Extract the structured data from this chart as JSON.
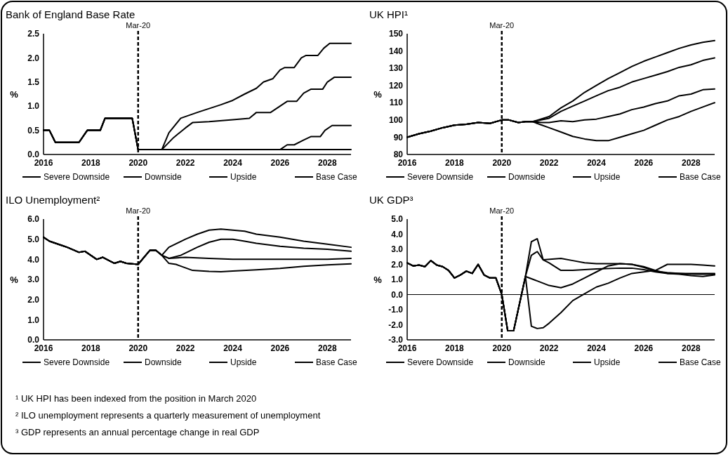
{
  "chart_data": [
    {
      "type": "line",
      "title": "Bank of England Base Rate",
      "ylabel": "%",
      "xlim": [
        2016,
        2029
      ],
      "xticks": [
        2016,
        2018,
        2020,
        2022,
        2024,
        2026,
        2028
      ],
      "ylim": [
        0,
        2.5
      ],
      "yticks": [
        {
          "value": 0,
          "label": "0.0"
        },
        {
          "value": 0.5,
          "label": "0.5"
        },
        {
          "value": 1,
          "label": "1.0"
        },
        {
          "value": 1.5,
          "label": "1.5"
        },
        {
          "value": 2,
          "label": "2.0"
        },
        {
          "value": 2.5,
          "label": "2.5"
        }
      ],
      "grid": false,
      "legend": "bottom",
      "ref_lines": [
        {
          "axis": "x",
          "value": 2020,
          "label": "Mar-20",
          "line_style": "dashed"
        }
      ],
      "series": [
        {
          "name": "Severe Downside",
          "color": "#000000",
          "x": [
            2016,
            2016.25,
            2016.5,
            2017.5,
            2017.85,
            2018.4,
            2018.6,
            2019.75,
            2020,
            2021,
            2029
          ],
          "values": [
            0.5,
            0.5,
            0.25,
            0.25,
            0.5,
            0.5,
            0.75,
            0.75,
            0.1,
            0.1,
            0.1
          ]
        },
        {
          "name": "Downside",
          "color": "#000000",
          "x": [
            2016,
            2016.25,
            2016.5,
            2017.5,
            2017.85,
            2018.4,
            2018.6,
            2019.75,
            2020,
            2021,
            2026,
            2026.3,
            2026.6,
            2027,
            2027.3,
            2027.7,
            2027.9,
            2028.2,
            2029
          ],
          "values": [
            0.5,
            0.5,
            0.25,
            0.25,
            0.5,
            0.5,
            0.75,
            0.75,
            0.1,
            0.1,
            0.1,
            0.2,
            0.2,
            0.3,
            0.37,
            0.37,
            0.5,
            0.6,
            0.6
          ]
        },
        {
          "name": "Upside",
          "color": "#000000",
          "x": [
            2016,
            2016.25,
            2016.5,
            2017.5,
            2017.85,
            2018.4,
            2018.6,
            2019.75,
            2020,
            2021,
            2021.3,
            2021.8,
            2022.5,
            2023.5,
            2024,
            2024.5,
            2025,
            2025.3,
            2025.7,
            2026,
            2026.2,
            2026.6,
            2026.9,
            2027.1,
            2027.6,
            2027.85,
            2028.1,
            2029
          ],
          "values": [
            0.5,
            0.5,
            0.25,
            0.25,
            0.5,
            0.5,
            0.75,
            0.75,
            0.1,
            0.1,
            0.45,
            0.75,
            0.87,
            1.03,
            1.12,
            1.25,
            1.37,
            1.5,
            1.57,
            1.75,
            1.8,
            1.8,
            2.0,
            2.05,
            2.05,
            2.2,
            2.3,
            2.3
          ]
        },
        {
          "name": "Base Case",
          "color": "#000000",
          "x": [
            2016,
            2016.25,
            2016.5,
            2017.5,
            2017.85,
            2018.4,
            2018.6,
            2019.75,
            2020,
            2021,
            2021.5,
            2022,
            2022.3,
            2023,
            2024,
            2024.7,
            2025,
            2025.6,
            2026,
            2026.3,
            2026.7,
            2027,
            2027.3,
            2027.8,
            2028,
            2028.3,
            2029
          ],
          "values": [
            0.5,
            0.5,
            0.25,
            0.25,
            0.5,
            0.5,
            0.75,
            0.75,
            0.1,
            0.1,
            0.35,
            0.55,
            0.66,
            0.68,
            0.72,
            0.75,
            0.87,
            0.87,
            1.0,
            1.1,
            1.1,
            1.27,
            1.35,
            1.35,
            1.5,
            1.6,
            1.6
          ]
        }
      ]
    },
    {
      "type": "line",
      "title": "UK HPI¹",
      "ylabel": "%",
      "xlim": [
        2016,
        2029
      ],
      "xticks": [
        2016,
        2018,
        2020,
        2022,
        2024,
        2026,
        2028
      ],
      "ylim": [
        80,
        150
      ],
      "yticks": [
        80,
        90,
        100,
        110,
        120,
        130,
        140,
        150
      ],
      "grid": false,
      "legend": "bottom",
      "ref_lines": [
        {
          "axis": "x",
          "value": 2020,
          "label": "Mar-20",
          "line_style": "dashed"
        }
      ],
      "series": [
        {
          "name": "Severe Downside",
          "color": "#000000",
          "x": [
            2016,
            2016.5,
            2017,
            2017.5,
            2018,
            2018.5,
            2019,
            2019.5,
            2020,
            2020.3,
            2020.7,
            2021,
            2021.3,
            2021.7,
            2022,
            2022.5,
            2023,
            2023.5,
            2024,
            2024.5,
            2025,
            2025.5,
            2026,
            2026.5,
            2027,
            2027.5,
            2028,
            2028.5,
            2029
          ],
          "values": [
            90,
            92,
            93.5,
            95.5,
            97,
            97.5,
            98.5,
            98,
            100,
            100,
            98.5,
            99,
            99,
            97,
            95.5,
            93,
            90.5,
            89,
            88,
            88,
            90,
            92,
            94,
            97,
            100,
            102,
            105,
            107.5,
            110
          ]
        },
        {
          "name": "Downside",
          "color": "#000000",
          "x": [
            2016,
            2016.5,
            2017,
            2017.5,
            2018,
            2018.5,
            2019,
            2019.5,
            2020,
            2020.3,
            2020.7,
            2021,
            2021.3,
            2021.7,
            2022,
            2022.5,
            2023,
            2023.5,
            2024,
            2024.5,
            2025,
            2025.5,
            2026,
            2026.5,
            2027,
            2027.5,
            2028,
            2028.5,
            2029
          ],
          "values": [
            90,
            92,
            93.5,
            95.5,
            97,
            97.5,
            98.5,
            98,
            100,
            100,
            98.5,
            99,
            99,
            98.5,
            98.5,
            99.5,
            99,
            100,
            100.5,
            102,
            103.5,
            106,
            107.5,
            109.5,
            111,
            114,
            115,
            117.5,
            118
          ]
        },
        {
          "name": "Upside",
          "color": "#000000",
          "x": [
            2016,
            2016.5,
            2017,
            2017.5,
            2018,
            2018.5,
            2019,
            2019.5,
            2020,
            2020.3,
            2020.7,
            2021,
            2021.3,
            2022,
            2022.5,
            2023,
            2023.5,
            2024,
            2024.5,
            2025,
            2025.5,
            2026,
            2026.5,
            2027,
            2027.5,
            2028,
            2028.5,
            2029
          ],
          "values": [
            90,
            92,
            93.5,
            95.5,
            97,
            97.5,
            98.5,
            98,
            100,
            100,
            98.5,
            99,
            99,
            102,
            107,
            111,
            116,
            120,
            124,
            127.5,
            131,
            134,
            136.5,
            139,
            141.5,
            143.5,
            145,
            146
          ]
        },
        {
          "name": "Base Case",
          "color": "#000000",
          "x": [
            2016,
            2016.5,
            2017,
            2017.5,
            2018,
            2018.5,
            2019,
            2019.5,
            2020,
            2020.3,
            2020.7,
            2021,
            2021.3,
            2022,
            2022.5,
            2023,
            2023.5,
            2024,
            2024.5,
            2025,
            2025.5,
            2026,
            2026.5,
            2027,
            2027.5,
            2028,
            2028.5,
            2029
          ],
          "values": [
            90,
            92,
            93.5,
            95.5,
            97,
            97.5,
            98.5,
            98,
            100,
            100,
            98.5,
            99,
            99,
            101,
            105,
            108,
            111,
            114,
            117,
            119,
            122,
            124,
            126,
            128,
            130.5,
            132,
            134.5,
            136
          ]
        }
      ]
    },
    {
      "type": "line",
      "title": "ILO Unemployment²",
      "ylabel": "%",
      "xlim": [
        2016,
        2029
      ],
      "xticks": [
        2016,
        2018,
        2020,
        2022,
        2024,
        2026,
        2028
      ],
      "ylim": [
        0,
        6
      ],
      "yticks": [
        {
          "value": 0,
          "label": "0.0"
        },
        {
          "value": 1,
          "label": "1.0"
        },
        {
          "value": 2,
          "label": "2.0"
        },
        {
          "value": 3,
          "label": "3.0"
        },
        {
          "value": 4,
          "label": "4.0"
        },
        {
          "value": 5,
          "label": "5.0"
        },
        {
          "value": 6,
          "label": "6.0"
        }
      ],
      "grid": false,
      "legend": "bottom",
      "ref_lines": [
        {
          "axis": "x",
          "value": 2020,
          "label": "Mar-20",
          "line_style": "dashed"
        }
      ],
      "series": [
        {
          "name": "Severe Downside",
          "color": "#000000",
          "x": [
            2016,
            2016.25,
            2016.75,
            2017,
            2017.5,
            2017.75,
            2018.25,
            2018.5,
            2019,
            2019.25,
            2019.5,
            2020,
            2020.25,
            2020.5,
            2020.75,
            2021,
            2021.3,
            2022,
            2022.5,
            2023,
            2023.5,
            2024,
            2024.5,
            2025,
            2026,
            2027,
            2028,
            2029
          ],
          "values": [
            5.1,
            4.9,
            4.7,
            4.6,
            4.35,
            4.4,
            4.0,
            4.1,
            3.8,
            3.9,
            3.8,
            3.75,
            4.1,
            4.45,
            4.45,
            4.2,
            4.6,
            5.0,
            5.25,
            5.45,
            5.5,
            5.45,
            5.4,
            5.25,
            5.1,
            4.9,
            4.75,
            4.6
          ]
        },
        {
          "name": "Downside",
          "color": "#000000",
          "x": [
            2016,
            2016.25,
            2016.75,
            2017,
            2017.5,
            2017.75,
            2018.25,
            2018.5,
            2019,
            2019.25,
            2019.5,
            2020,
            2020.25,
            2020.5,
            2020.75,
            2021,
            2021.3,
            2021.8,
            2022.5,
            2023,
            2023.5,
            2024,
            2024.5,
            2025,
            2026,
            2027,
            2028,
            2029
          ],
          "values": [
            5.1,
            4.9,
            4.7,
            4.6,
            4.35,
            4.4,
            4.0,
            4.1,
            3.8,
            3.9,
            3.8,
            3.75,
            4.1,
            4.45,
            4.45,
            4.2,
            4.05,
            4.2,
            4.6,
            4.85,
            5.0,
            5.0,
            4.9,
            4.8,
            4.65,
            4.55,
            4.5,
            4.4
          ]
        },
        {
          "name": "Upside",
          "color": "#000000",
          "x": [
            2016,
            2016.25,
            2016.75,
            2017,
            2017.5,
            2017.75,
            2018.25,
            2018.5,
            2019,
            2019.25,
            2019.5,
            2020,
            2020.25,
            2020.5,
            2020.75,
            2021,
            2021.3,
            2021.6,
            2022.3,
            2023,
            2023.5,
            2024,
            2025,
            2026,
            2027,
            2028,
            2029
          ],
          "values": [
            5.1,
            4.9,
            4.7,
            4.6,
            4.35,
            4.4,
            4.0,
            4.1,
            3.8,
            3.9,
            3.8,
            3.75,
            4.1,
            4.45,
            4.45,
            4.2,
            3.8,
            3.75,
            3.45,
            3.4,
            3.38,
            3.42,
            3.48,
            3.55,
            3.65,
            3.72,
            3.78
          ]
        },
        {
          "name": "Base Case",
          "color": "#000000",
          "x": [
            2016,
            2016.25,
            2016.75,
            2017,
            2017.5,
            2017.75,
            2018.25,
            2018.5,
            2019,
            2019.25,
            2019.5,
            2020,
            2020.25,
            2020.5,
            2020.75,
            2021,
            2021.3,
            2022,
            2023,
            2024,
            2025,
            2026,
            2027,
            2028,
            2029
          ],
          "values": [
            5.1,
            4.9,
            4.7,
            4.6,
            4.35,
            4.4,
            4.0,
            4.1,
            3.8,
            3.9,
            3.8,
            3.75,
            4.1,
            4.45,
            4.45,
            4.2,
            4.05,
            4.1,
            4.05,
            4.0,
            4.0,
            4.0,
            4.0,
            4.0,
            4.05
          ]
        }
      ]
    },
    {
      "type": "line",
      "title": "UK GDP³",
      "ylabel": "%",
      "xlim": [
        2016,
        2029
      ],
      "xticks": [
        2016,
        2018,
        2020,
        2022,
        2024,
        2026,
        2028
      ],
      "ylim": [
        -3,
        5
      ],
      "yticks": [
        {
          "value": -3,
          "label": "-3.0"
        },
        {
          "value": -2,
          "label": "-2.0"
        },
        {
          "value": -1,
          "label": "-1.0"
        },
        {
          "value": 0,
          "label": "0.0"
        },
        {
          "value": 1,
          "label": "1.0"
        },
        {
          "value": 2,
          "label": "2.0"
        },
        {
          "value": 3,
          "label": "3.0"
        },
        {
          "value": 4,
          "label": "4.0"
        },
        {
          "value": 5,
          "label": "5.0"
        }
      ],
      "grid": false,
      "legend": "bottom",
      "ref_lines": [
        {
          "axis": "x",
          "value": 2020,
          "label": "Mar-20",
          "line_style": "dashed"
        },
        {
          "axis": "y",
          "value": 0,
          "line_style": "solid"
        }
      ],
      "annotations": [
        "¹ UK HPI has been indexed from the position in March 2020",
        "² ILO unemployment represents a quarterly measurement of unemployment",
        "³ GDP represents an annual percentage change in real GDP"
      ],
      "series": [
        {
          "name": "Severe Downside",
          "color": "#000000",
          "x": [
            2016,
            2016.25,
            2016.5,
            2016.75,
            2017,
            2017.25,
            2017.5,
            2017.75,
            2018,
            2018.25,
            2018.5,
            2018.75,
            2019,
            2019.25,
            2019.5,
            2019.75,
            2020,
            2020.25,
            2020.5,
            2021,
            2021.25,
            2021.5,
            2021.75,
            2022,
            2022.5,
            2023,
            2023.5,
            2024,
            2024.5,
            2025,
            2025.5,
            2026,
            2026.5,
            2027,
            2027.5,
            2028,
            2028.5,
            2029
          ],
          "values": [
            2.1,
            1.9,
            1.95,
            1.85,
            2.25,
            1.95,
            1.85,
            1.6,
            1.1,
            1.3,
            1.55,
            1.4,
            2.0,
            1.3,
            1.1,
            1.1,
            0.0,
            -2.4,
            -2.4,
            1.2,
            -2.1,
            -2.25,
            -2.2,
            -1.9,
            -1.2,
            -0.4,
            0.05,
            0.5,
            0.75,
            1.1,
            1.4,
            1.5,
            1.6,
            2.0,
            2.0,
            2.0,
            1.95,
            1.9
          ]
        },
        {
          "name": "Downside",
          "color": "#000000",
          "x": [
            2016,
            2016.25,
            2016.5,
            2016.75,
            2017,
            2017.25,
            2017.5,
            2017.75,
            2018,
            2018.25,
            2018.5,
            2018.75,
            2019,
            2019.25,
            2019.5,
            2019.75,
            2020,
            2020.25,
            2020.5,
            2021,
            2021.5,
            2022,
            2022.5,
            2023,
            2023.5,
            2024,
            2024.5,
            2025,
            2025.5,
            2026,
            2026.5,
            2027,
            2028,
            2029
          ],
          "values": [
            2.1,
            1.9,
            1.95,
            1.85,
            2.25,
            1.95,
            1.85,
            1.6,
            1.1,
            1.3,
            1.55,
            1.4,
            2.0,
            1.3,
            1.1,
            1.1,
            0.0,
            -2.4,
            -2.4,
            1.2,
            0.9,
            0.6,
            0.45,
            0.7,
            1.1,
            1.5,
            1.9,
            2.05,
            2.0,
            1.8,
            1.55,
            1.45,
            1.35,
            1.35
          ]
        },
        {
          "name": "Upside",
          "color": "#000000",
          "x": [
            2016,
            2016.25,
            2016.5,
            2016.75,
            2017,
            2017.25,
            2017.5,
            2017.75,
            2018,
            2018.25,
            2018.5,
            2018.75,
            2019,
            2019.25,
            2019.5,
            2019.75,
            2020,
            2020.25,
            2020.5,
            2021,
            2021.25,
            2021.5,
            2021.75,
            2022,
            2022.5,
            2023,
            2024,
            2025,
            2025.5,
            2026,
            2026.5,
            2027,
            2028,
            2029
          ],
          "values": [
            2.1,
            1.9,
            1.95,
            1.85,
            2.25,
            1.95,
            1.85,
            1.6,
            1.1,
            1.3,
            1.55,
            1.4,
            2.0,
            1.3,
            1.1,
            1.1,
            0.0,
            -2.4,
            -2.4,
            1.2,
            3.5,
            3.7,
            2.3,
            2.1,
            1.6,
            1.6,
            1.7,
            1.75,
            1.75,
            1.65,
            1.5,
            1.4,
            1.4,
            1.4
          ]
        },
        {
          "name": "Base Case",
          "color": "#000000",
          "x": [
            2016,
            2016.25,
            2016.5,
            2016.75,
            2017,
            2017.25,
            2017.5,
            2017.75,
            2018,
            2018.25,
            2018.5,
            2018.75,
            2019,
            2019.25,
            2019.5,
            2019.75,
            2020,
            2020.25,
            2020.5,
            2021,
            2021.25,
            2021.5,
            2021.75,
            2022.5,
            2023,
            2023.5,
            2024,
            2025,
            2025.5,
            2026,
            2026.5,
            2027,
            2027.5,
            2028,
            2028.5,
            2029
          ],
          "values": [
            2.1,
            1.9,
            1.95,
            1.85,
            2.25,
            1.95,
            1.85,
            1.6,
            1.1,
            1.3,
            1.55,
            1.4,
            2.0,
            1.3,
            1.1,
            1.1,
            0.0,
            -2.4,
            -2.4,
            1.2,
            2.6,
            2.85,
            2.3,
            2.4,
            2.25,
            2.1,
            2.05,
            2.05,
            2.0,
            1.85,
            1.6,
            1.4,
            1.35,
            1.25,
            1.2,
            1.3
          ]
        }
      ]
    }
  ]
}
